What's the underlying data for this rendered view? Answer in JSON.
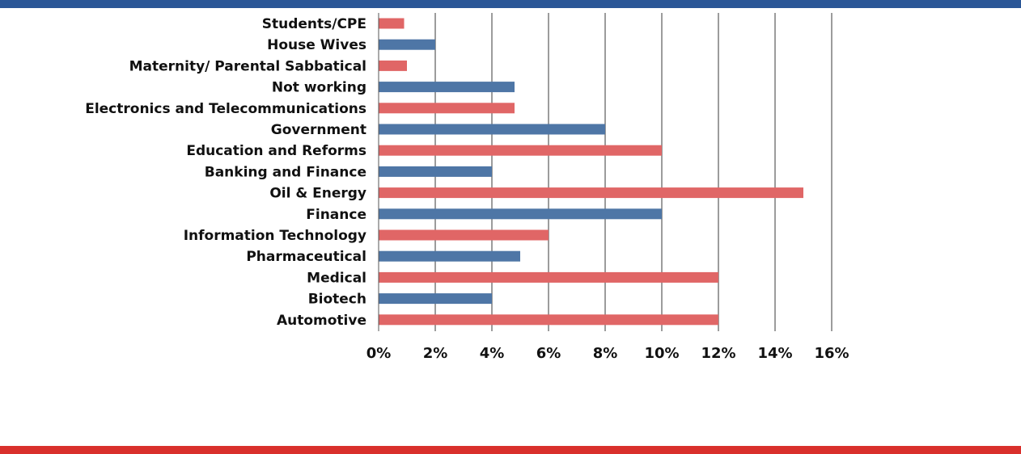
{
  "theme": {
    "top_band_color": "#2b5797",
    "bottom_band_color": "#d9302c",
    "bar_color_a": "#e06666",
    "bar_color_b": "#4e76a6"
  },
  "chart_data": {
    "type": "bar",
    "orientation": "horizontal",
    "title": "",
    "xlabel": "",
    "ylabel": "",
    "xlim": [
      0,
      16
    ],
    "x_ticks": [
      "0%",
      "2%",
      "4%",
      "6%",
      "8%",
      "10%",
      "12%",
      "14%",
      "16%"
    ],
    "grid": "vertical",
    "legend": "none",
    "categories": [
      "Students/CPE",
      "House Wives",
      "Maternity/ Parental Sabbatical",
      "Not working",
      "Electronics and Telecommunications",
      "Government",
      "Education and Reforms",
      "Banking and Finance",
      "Oil & Energy",
      "Finance",
      "Information Technology",
      "Pharmaceutical",
      "Medical",
      "Biotech",
      "Automotive"
    ],
    "values": [
      0.9,
      2,
      1,
      4.8,
      4.8,
      8,
      10,
      4,
      15,
      10,
      6,
      5,
      12,
      4,
      12
    ],
    "bar_colors": [
      "#e06666",
      "#4e76a6",
      "#e06666",
      "#4e76a6",
      "#e06666",
      "#4e76a6",
      "#e06666",
      "#4e76a6",
      "#e06666",
      "#4e76a6",
      "#e06666",
      "#4e76a6",
      "#e06666",
      "#4e76a6",
      "#e06666"
    ]
  }
}
